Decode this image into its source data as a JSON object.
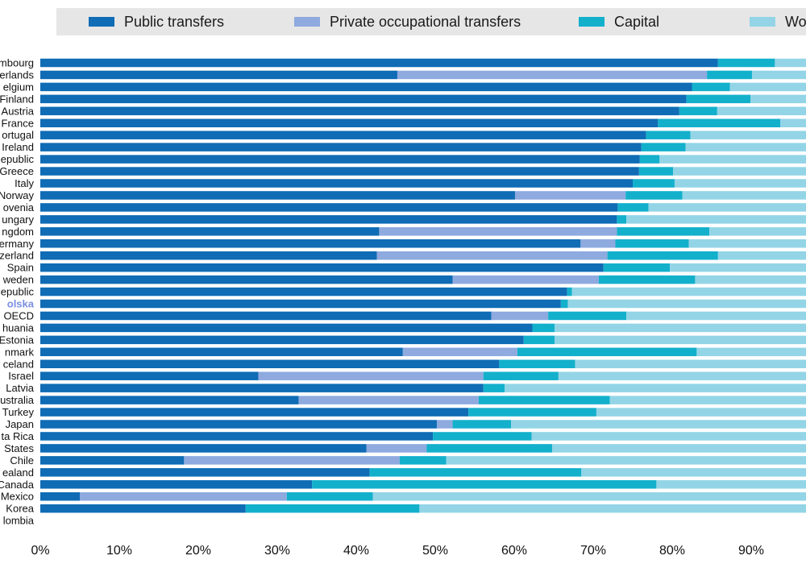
{
  "chart_data": {
    "type": "bar",
    "orientation": "horizontal",
    "stacked": true,
    "xlim": [
      0,
      100
    ],
    "x_ticks": [
      "0%",
      "10%",
      "20%",
      "30%",
      "40%",
      "50%",
      "60%",
      "70%",
      "80%",
      "90%"
    ],
    "legend_placement": "top",
    "highlight": "olska",
    "categories": [
      "mbourg",
      "erlands",
      "elgium",
      "Finland",
      "Austria",
      "France",
      "ortugal",
      "Ireland",
      "epublic",
      "Greece",
      "Italy",
      "Norway",
      "ovenia",
      "ungary",
      "ngdom",
      "ermany",
      "zerland",
      "Spain",
      "weden",
      "epublic",
      "olska",
      "OECD",
      "huania",
      "Estonia",
      "nmark",
      "celand",
      "Israel",
      "Latvia",
      "ustralia",
      "Turkey",
      "Japan",
      "ta Rica",
      "States",
      "Chile",
      "ealand",
      "Canada",
      "Mexico",
      "Korea",
      "lombia"
    ],
    "series": [
      {
        "name": "Public transfers",
        "color": "#0f6cb5",
        "values": [
          85.8,
          45.2,
          82.5,
          81.8,
          80.9,
          78.2,
          76.7,
          76.1,
          75.9,
          75.8,
          75.0,
          60.1,
          73.1,
          73.0,
          42.9,
          68.4,
          42.6,
          71.3,
          52.2,
          66.7,
          65.9,
          57.1,
          62.3,
          61.2,
          45.9,
          58.1,
          27.6,
          56.1,
          32.7,
          54.2,
          50.2,
          49.7,
          41.3,
          18.2,
          41.7,
          34.4,
          5.0,
          26.0,
          0
        ]
      },
      {
        "name": "Private occupational transfers",
        "color": "#8eaadf",
        "values": [
          0,
          39.2,
          0,
          0,
          0,
          0,
          0,
          0,
          0,
          0,
          0,
          14.0,
          0,
          0,
          30.1,
          4.4,
          29.2,
          0,
          18.5,
          0,
          0,
          7.2,
          0,
          0,
          14.5,
          0,
          28.5,
          0,
          22.8,
          0,
          2.0,
          0,
          7.6,
          27.3,
          0,
          0,
          26.2,
          0,
          0
        ]
      },
      {
        "name": "Capital",
        "color": "#13b0cc",
        "values": [
          7.2,
          5.7,
          4.8,
          8.1,
          4.8,
          15.5,
          5.6,
          5.6,
          2.5,
          4.3,
          5.3,
          7.2,
          3.9,
          1.2,
          11.7,
          9.3,
          14.0,
          8.4,
          12.2,
          0.6,
          0.9,
          9.9,
          2.8,
          3.9,
          22.7,
          9.6,
          9.5,
          2.7,
          16.6,
          16.2,
          7.4,
          12.5,
          15.9,
          5.9,
          26.8,
          43.6,
          10.9,
          22.0,
          0
        ]
      },
      {
        "name": "Work",
        "color": "#93d5e6",
        "values": [
          7.0,
          9.9,
          12.7,
          10.1,
          14.3,
          6.3,
          17.7,
          18.3,
          21.6,
          19.9,
          19.7,
          18.7,
          23.0,
          25.8,
          15.3,
          17.9,
          14.2,
          20.3,
          17.1,
          32.7,
          33.2,
          25.8,
          34.9,
          34.9,
          16.9,
          32.3,
          34.4,
          41.2,
          27.9,
          29.6,
          40.4,
          37.8,
          35.2,
          48.6,
          31.5,
          22.0,
          57.9,
          52.0,
          0
        ]
      }
    ]
  }
}
